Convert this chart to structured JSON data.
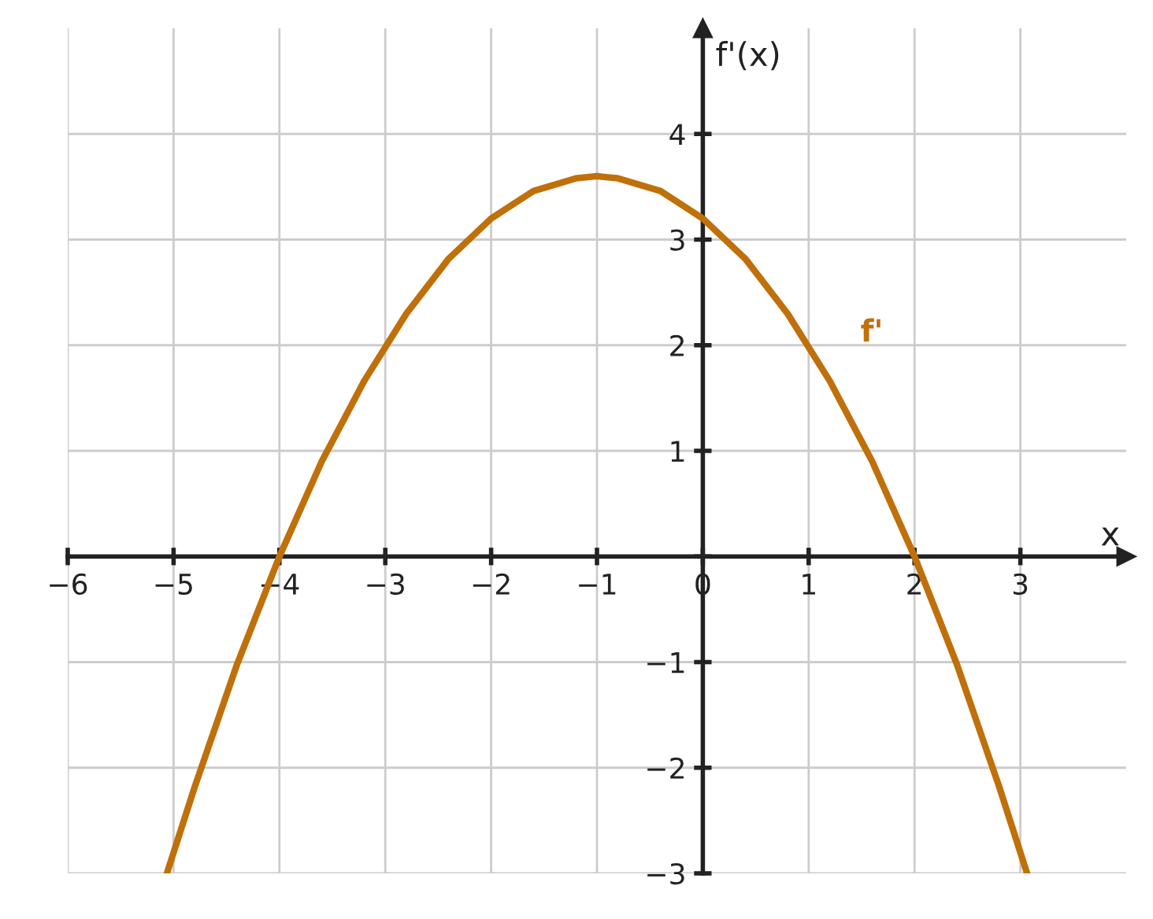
{
  "chart_data": {
    "type": "line",
    "xlabel": "x",
    "ylabel": "f'(x)",
    "x": [
      -5.06,
      -4.8,
      -4.4,
      -4.0,
      -3.6,
      -3.2,
      -2.8,
      -2.4,
      -2.0,
      -1.6,
      -1.2,
      -1.0,
      -0.8,
      -0.4,
      0,
      0.4,
      0.8,
      1.2,
      1.6,
      2.0,
      2.4,
      2.8,
      3.06
    ],
    "series": [
      {
        "name": "f'",
        "color": "#c0700a",
        "values": [
          -2.99,
          -2.18,
          -1.02,
          0,
          0.9,
          1.66,
          2.3,
          2.82,
          3.2,
          3.46,
          3.58,
          3.6,
          3.58,
          3.46,
          3.2,
          2.82,
          2.3,
          1.66,
          0.9,
          0,
          -1.02,
          -2.18,
          -2.99
        ]
      }
    ],
    "xlim": [
      -6,
      4
    ],
    "ylim": [
      -3,
      5
    ],
    "xticks": [
      -6,
      -5,
      -4,
      -3,
      -2,
      -1,
      0,
      1,
      2,
      3
    ],
    "yticks": [
      -3,
      -2,
      -1,
      {
        "value": 0,
        "label": null
      },
      1,
      2,
      3,
      4
    ],
    "grid": true,
    "marker": "none",
    "line_style": "solid"
  }
}
